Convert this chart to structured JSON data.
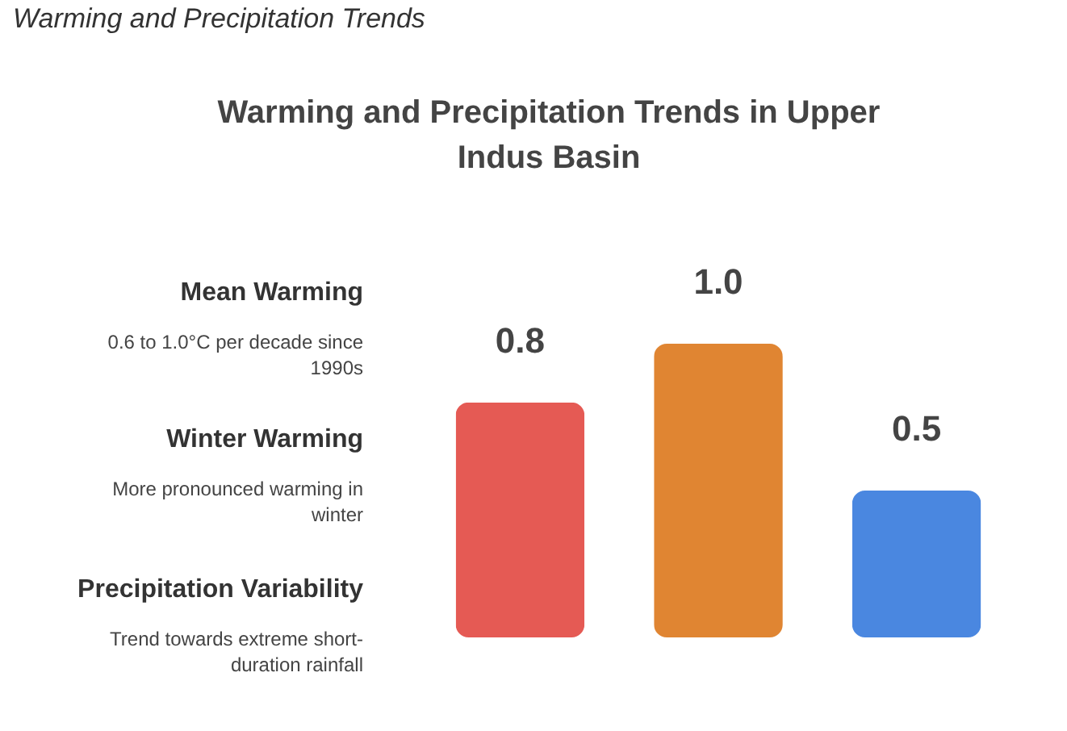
{
  "chart_data": {
    "type": "bar",
    "title": "Warming and Precipitation Trends in Upper Indus Basin",
    "categories": [
      null,
      null,
      null
    ],
    "values": [
      0.8,
      1.0,
      0.5
    ],
    "colors": [
      "#e55a54",
      "#e08532",
      "#4a87e0"
    ],
    "value_labels": [
      "0.8",
      "1.0",
      "0.5"
    ],
    "annotations": [
      "Warming and Precipitation Trends",
      "Mean Warming",
      "0.6 to 1.0°C per decade since 1990s",
      "Winter Warming",
      "More pronounced warming in winter",
      "Precipitation Variability",
      "Trend towards extreme short-duration rainfall"
    ]
  }
}
